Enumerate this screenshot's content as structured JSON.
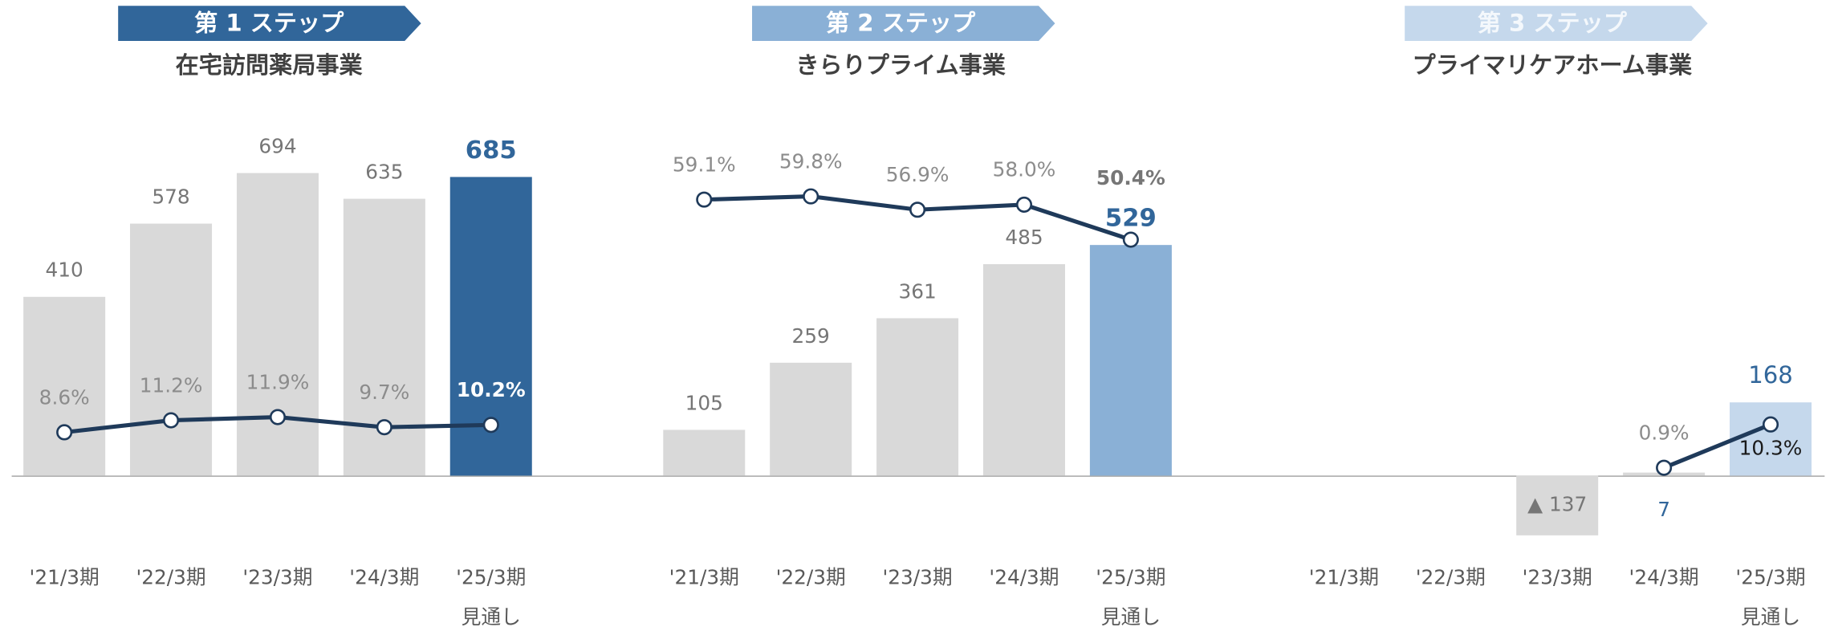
{
  "chart_data": [
    {
      "type": "bar",
      "step": "第 1 ステップ",
      "title": "在宅訪問薬局事業",
      "categories": [
        "'21/3期",
        "'22/3期",
        "'23/3期",
        "'24/3期",
        "'25/3期"
      ],
      "forecast_label": "見通し",
      "values": [
        410,
        578,
        694,
        635,
        685
      ],
      "color": "#d9d9d9",
      "highlight_color": "#31669a",
      "line": {
        "axis": "y2",
        "color": "#1f3a5a",
        "values": [
          8.6,
          11.2,
          11.9,
          9.7,
          10.2
        ],
        "value_labels": [
          "8.6%",
          "11.2%",
          "11.9%",
          "9.7%",
          "10.2%"
        ]
      },
      "ylim": [
        -150,
        780
      ],
      "y2lim": [
        -15,
        73
      ]
    },
    {
      "type": "bar",
      "step": "第 2 ステップ",
      "title": "きらりプライム事業",
      "categories": [
        "'21/3期",
        "'22/3期",
        "'23/3期",
        "'24/3期",
        "'25/3期"
      ],
      "forecast_label": "見通し",
      "values": [
        105,
        259,
        361,
        485,
        529
      ],
      "color": "#d9d9d9",
      "highlight_color": "#8ab0d6",
      "line": {
        "axis": "y2",
        "color": "#1f3a5a",
        "values": [
          59.1,
          59.8,
          56.9,
          58.0,
          50.4
        ],
        "value_labels": [
          "59.1%",
          "59.8%",
          "56.9%",
          "58.0%",
          "50.4%"
        ]
      },
      "ylim": [
        -150,
        780
      ],
      "y2lim": [
        -15,
        73
      ]
    },
    {
      "type": "bar",
      "step": "第 3 ステップ",
      "title": "プライマリケアホーム事業",
      "categories": [
        "'21/3期",
        "'22/3期",
        "'23/3期",
        "'24/3期",
        "'25/3期"
      ],
      "forecast_label": "見通し",
      "values": [
        null,
        null,
        -137,
        7,
        168
      ],
      "value_labels": [
        null,
        null,
        "▲ 137",
        null,
        null
      ],
      "color": "#d9d9d9",
      "highlight_color": "#c5d8ec",
      "line": {
        "axis": "y2",
        "color": "#1f3a5a",
        "values": [
          null,
          null,
          null,
          0.9,
          10.3
        ],
        "value_labels": [
          null,
          null,
          null,
          "0.9%",
          "10.3%"
        ]
      },
      "ylim": [
        -150,
        780
      ],
      "y2lim": [
        -15,
        73
      ]
    }
  ]
}
